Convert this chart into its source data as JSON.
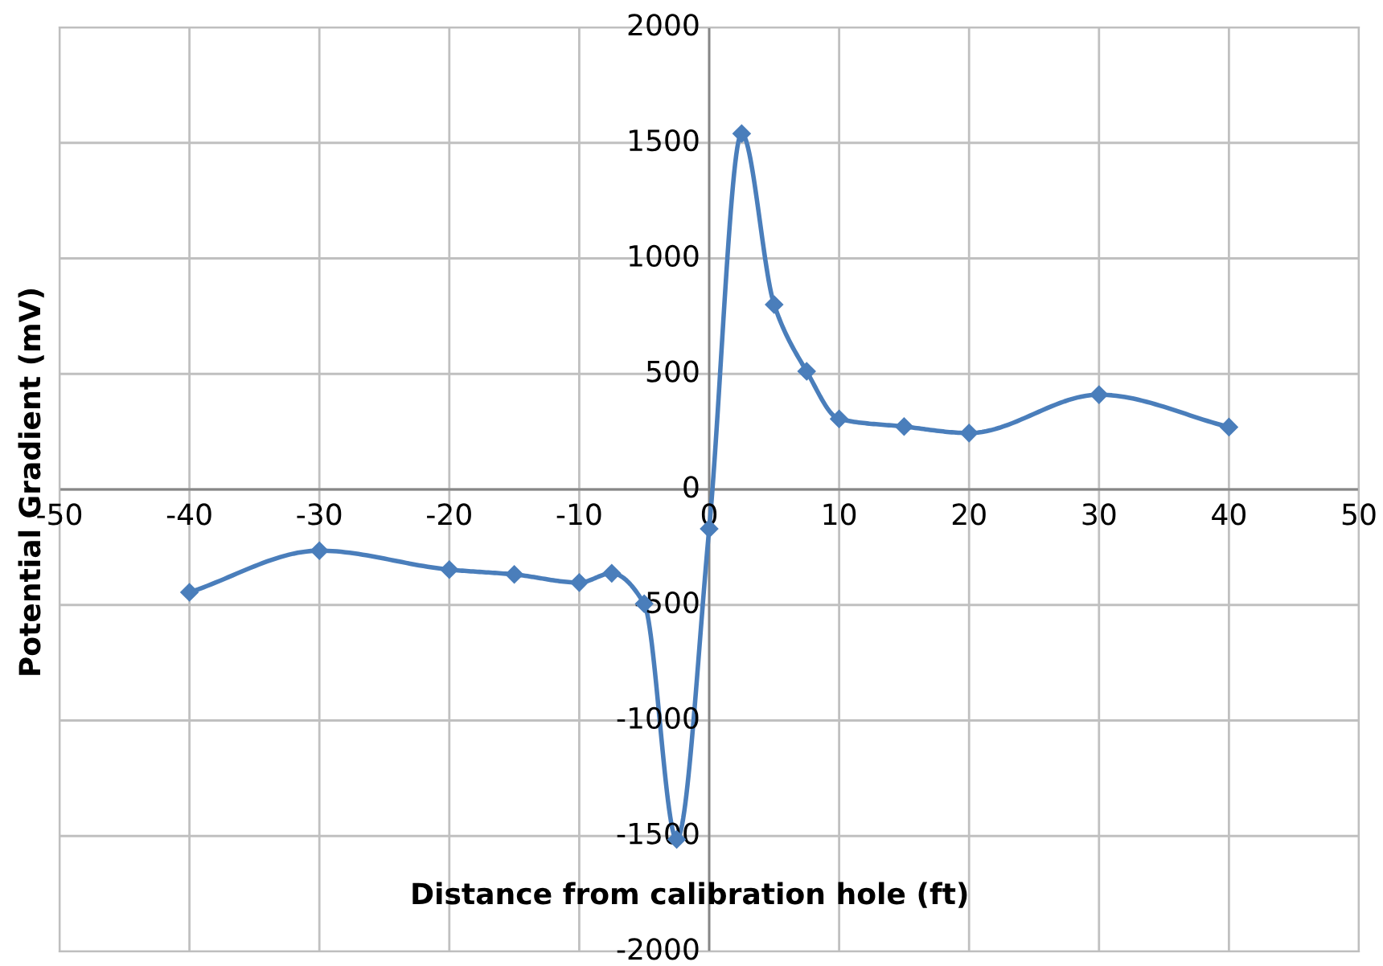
{
  "chart_data": {
    "type": "line",
    "xlabel": "Distance from calibration hole (ft)",
    "ylabel": "Potential Gradient (mV)",
    "x": [
      -40,
      -30,
      -20,
      -15,
      -10,
      -7.5,
      -5,
      -2.5,
      0,
      2.5,
      5,
      7.5,
      10,
      15,
      20,
      30,
      40
    ],
    "series": [
      {
        "color": "#4a7ebb",
        "values": [
          -445,
          -265,
          -347,
          -368,
          -403,
          -363,
          -495,
          -1515,
          -170,
          1540,
          800,
          511,
          305,
          272,
          244,
          410,
          270
        ]
      }
    ],
    "xlim": [
      -50,
      50
    ],
    "xticks": [
      -50,
      -40,
      -30,
      -20,
      -10,
      0,
      10,
      20,
      30,
      40,
      50
    ],
    "ylim": [
      -2000,
      2000
    ],
    "yticks": [
      -2000,
      -1500,
      -1000,
      -500,
      0,
      500,
      1000,
      1500,
      2000
    ],
    "grid": true,
    "marker": "diamond",
    "line_style": "solid",
    "legend": false
  }
}
